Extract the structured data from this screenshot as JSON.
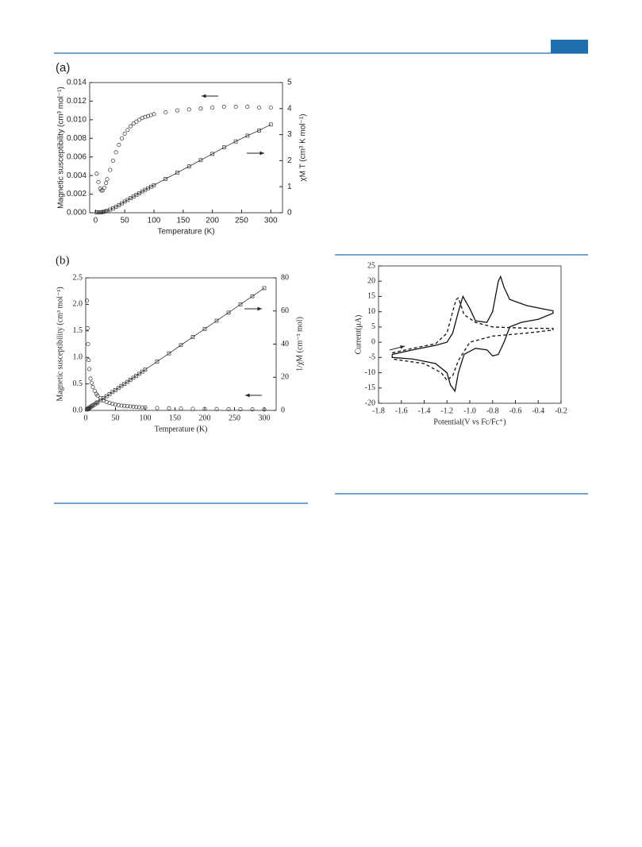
{
  "chart_data": [
    {
      "type": "scatter",
      "label": "(a)",
      "xlabel": "Temperature (K)",
      "ylabel": "Magnetic susceptibility (cm³ mol⁻¹)",
      "y2label": "χM T (cm³ K mol⁻¹)",
      "xlim": [
        -10,
        320
      ],
      "xticks": [
        0,
        50,
        100,
        150,
        200,
        250,
        300
      ],
      "ylim": [
        0,
        0.014
      ],
      "yticks": [
        {
          "value": 0,
          "label": "0.000"
        },
        0.002,
        0.004,
        0.006,
        0.008,
        {
          "value": 0.01,
          "label": "0.010"
        },
        0.012,
        0.014
      ],
      "y2lim": [
        0,
        5
      ],
      "y2ticks": [
        0,
        1,
        2,
        3,
        4,
        5
      ],
      "x": [
        2,
        5,
        8,
        10,
        12,
        15,
        18,
        20,
        25,
        30,
        35,
        40,
        45,
        50,
        55,
        60,
        65,
        70,
        75,
        80,
        85,
        90,
        95,
        100,
        120,
        140,
        160,
        180,
        200,
        220,
        240,
        260,
        280,
        300
      ],
      "series": [
        {
          "color": "#333333",
          "marker": "circle",
          "values": [
            0.0042,
            0.0033,
            0.0026,
            0.0024,
            0.0024,
            0.0027,
            0.0032,
            0.0036,
            0.0046,
            0.0056,
            0.0065,
            0.0073,
            0.008,
            0.0085,
            0.0089,
            0.0093,
            0.0096,
            0.0098,
            0.01,
            0.0102,
            0.0103,
            0.0104,
            0.0105,
            0.0106,
            0.0108,
            0.011,
            0.0111,
            0.0112,
            0.0113,
            0.0114,
            0.0114,
            0.0114,
            0.0113,
            0.0113
          ]
        },
        {
          "color": "#333333",
          "marker": "square",
          "line": true,
          "axis": "y2",
          "values": [
            0.01,
            0.02,
            0.02,
            0.02,
            0.03,
            0.04,
            0.06,
            0.07,
            0.12,
            0.17,
            0.23,
            0.29,
            0.36,
            0.43,
            0.49,
            0.56,
            0.62,
            0.69,
            0.75,
            0.82,
            0.88,
            0.94,
            1.0,
            1.06,
            1.3,
            1.54,
            1.78,
            2.02,
            2.26,
            2.51,
            2.74,
            2.96,
            3.16,
            3.39
          ]
        }
      ]
    },
    {
      "type": "scatter",
      "label": "(b)",
      "xlabel": "Temperature (K)",
      "ylabel": "Magnetic susceptibility (cm³ mol⁻¹)",
      "y2label": "1/χM (cm⁻³ mol)",
      "xlim": [
        0,
        320
      ],
      "xticks": [
        0,
        50,
        100,
        150,
        200,
        250,
        300
      ],
      "ylim": [
        0,
        2.5
      ],
      "yticks": [
        {
          "value": 0,
          "label": "0.0"
        },
        0.5,
        {
          "value": 1,
          "label": "1.0"
        },
        1.5,
        {
          "value": 2,
          "label": "2.0"
        },
        2.5
      ],
      "y2lim": [
        0,
        80
      ],
      "y2ticks": [
        0,
        20,
        40,
        60,
        80
      ],
      "x": [
        2,
        3,
        4,
        5,
        6,
        8,
        10,
        12,
        15,
        18,
        20,
        25,
        30,
        35,
        40,
        45,
        50,
        55,
        60,
        65,
        70,
        75,
        80,
        85,
        90,
        95,
        100,
        120,
        140,
        160,
        180,
        200,
        220,
        240,
        260,
        280,
        300
      ],
      "series": [
        {
          "color": "#333333",
          "marker": "circle",
          "values": [
            2.07,
            1.55,
            1.25,
            0.95,
            0.78,
            0.6,
            0.52,
            0.44,
            0.37,
            0.31,
            0.28,
            0.23,
            0.19,
            0.16,
            0.14,
            0.125,
            0.11,
            0.1,
            0.09,
            0.085,
            0.08,
            0.075,
            0.07,
            0.065,
            0.06,
            0.058,
            0.055,
            0.045,
            0.04,
            0.035,
            0.03,
            0.028,
            0.025,
            0.023,
            0.022,
            0.02,
            0.018
          ]
        },
        {
          "color": "#333333",
          "marker": "square",
          "line": true,
          "axis": "y2",
          "values": [
            0.5,
            0.7,
            1.0,
            1.2,
            1.5,
            2.0,
            2.5,
            3.0,
            3.7,
            4.4,
            4.9,
            6.2,
            7.4,
            8.6,
            9.8,
            11.1,
            12.3,
            13.5,
            14.8,
            16.0,
            17.2,
            18.5,
            19.7,
            20.9,
            22.1,
            23.4,
            24.6,
            29.5,
            34.4,
            39.4,
            44.3,
            49.2,
            54.1,
            59.0,
            64.0,
            68.9,
            73.8
          ]
        }
      ]
    },
    {
      "type": "line",
      "xlabel": "Potential(V vs Fc/Fc⁺)",
      "ylabel": "Current(μA)",
      "xlim": [
        -1.8,
        -0.2
      ],
      "xticks": [
        -1.8,
        -1.6,
        -1.4,
        -1.2,
        {
          "value": -1,
          "label": "-1.0"
        },
        -0.8,
        -0.6,
        -0.4,
        -0.2
      ],
      "ylim": [
        -20,
        25
      ],
      "yticks": [
        -20,
        -15,
        -10,
        -5,
        0,
        5,
        10,
        15,
        20,
        25
      ],
      "series": [
        {
          "color": "#111111",
          "x": [
            -1.68,
            -1.5,
            -1.3,
            -1.2,
            -1.15,
            -1.1,
            -1.06,
            -1.0,
            -0.95,
            -0.85,
            -0.8,
            -0.75,
            -0.73,
            -0.7,
            -0.65,
            -0.5,
            -0.3,
            -0.27,
            -0.27,
            -0.4,
            -0.55,
            -0.65,
            -0.7,
            -0.75,
            -0.8,
            -0.85,
            -0.95,
            -1.05,
            -1.1,
            -1.13,
            -1.17,
            -1.2,
            -1.3,
            -1.5,
            -1.68,
            -1.68
          ],
          "values": [
            -4,
            -2.5,
            -1,
            0,
            3,
            10,
            15,
            11,
            7,
            6.5,
            10,
            20,
            21.5,
            18,
            14,
            12,
            10.5,
            10.3,
            9.5,
            7.5,
            6.5,
            5,
            0,
            -4,
            -4.5,
            -2.5,
            -2,
            -4,
            -10,
            -16,
            -14,
            -10,
            -7,
            -5.5,
            -5,
            -4
          ]
        },
        {
          "color": "#111111",
          "dash": true,
          "x": [
            -1.68,
            -1.5,
            -1.3,
            -1.2,
            -1.15,
            -1.12,
            -1.1,
            -1.05,
            -0.95,
            -0.8,
            -0.5,
            -0.27,
            -0.27,
            -0.5,
            -0.8,
            -1.0,
            -1.1,
            -1.15,
            -1.2,
            -1.25,
            -1.4,
            -1.68
          ],
          "values": [
            -3.5,
            -2,
            -0.5,
            3,
            10,
            14,
            14.5,
            9,
            6.5,
            5,
            4.6,
            4.5,
            4,
            3,
            2,
            0,
            -6,
            -11,
            -12.5,
            -10,
            -7,
            -5.5
          ]
        }
      ]
    }
  ]
}
